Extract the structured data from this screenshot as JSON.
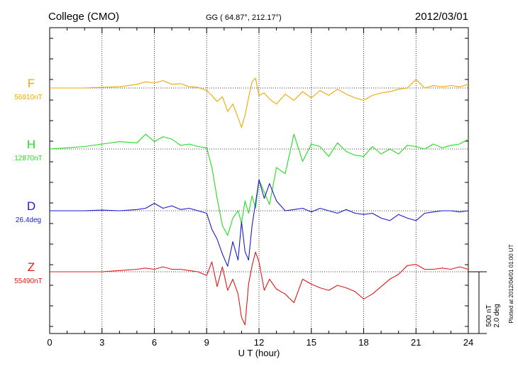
{
  "header": {
    "station": "College (CMO)",
    "coords": "GG ( 64.87°, 212.17°)",
    "date": "2012/03/01"
  },
  "footer": {
    "plotted": "Plotted at 2012/04/01 01:00 UT"
  },
  "scale_bar": {
    "nt_label": "500 nT",
    "deg_label": "2.0 deg"
  },
  "chart_data": {
    "type": "line",
    "title": "",
    "xlabel": "U T (hour)",
    "ylabel": "",
    "xlim": [
      0,
      24
    ],
    "x_ticks": [
      "0",
      "3",
      "6",
      "9",
      "12",
      "15",
      "18",
      "21",
      "24"
    ],
    "grid": true,
    "series": [
      {
        "name": "F",
        "baseline_label": "56910nT",
        "color": "#f0a800",
        "x": [
          0,
          1,
          2,
          3,
          4,
          5,
          5.5,
          6,
          6.5,
          7,
          7.5,
          8,
          8.5,
          9,
          9.3,
          9.6,
          9.9,
          10.2,
          10.5,
          10.8,
          11,
          11.2,
          11.4,
          11.6,
          11.8,
          12,
          12.3,
          12.6,
          13,
          13.5,
          14,
          14.5,
          15,
          15.5,
          16,
          16.5,
          17,
          17.5,
          18,
          18.5,
          19,
          19.5,
          20,
          20.5,
          21,
          21.5,
          22,
          22.5,
          23,
          23.5,
          24
        ],
        "values": [
          0,
          0,
          0,
          5,
          10,
          30,
          50,
          40,
          60,
          30,
          35,
          10,
          5,
          -20,
          -60,
          -110,
          -70,
          -190,
          -130,
          -240,
          -320,
          -220,
          -80,
          50,
          80,
          -60,
          -40,
          -90,
          -130,
          -50,
          -100,
          -30,
          -80,
          -20,
          -60,
          -10,
          -50,
          -80,
          -100,
          -60,
          -40,
          -30,
          -10,
          0,
          70,
          0,
          20,
          10,
          20,
          10,
          30
        ]
      },
      {
        "name": "H",
        "baseline_label": "12870nT",
        "color": "#22dd22",
        "x": [
          0,
          1,
          2,
          3,
          4,
          5,
          5.5,
          6,
          6.5,
          7,
          7.5,
          8,
          8.5,
          9,
          9.3,
          9.6,
          9.9,
          10.2,
          10.5,
          10.8,
          11,
          11.2,
          11.4,
          11.6,
          11.8,
          12,
          12.3,
          12.6,
          13,
          13.5,
          14,
          14.5,
          15,
          15.5,
          16,
          16.5,
          17,
          17.5,
          18,
          18.5,
          19,
          19.5,
          20,
          20.5,
          21,
          21.5,
          22,
          22.5,
          23,
          23.5,
          24
        ],
        "values": [
          0,
          10,
          20,
          40,
          60,
          50,
          120,
          60,
          100,
          80,
          30,
          40,
          20,
          10,
          -150,
          -400,
          -620,
          -700,
          -560,
          -500,
          -600,
          -420,
          -520,
          -380,
          -480,
          -250,
          -350,
          -450,
          -150,
          -200,
          120,
          -100,
          40,
          20,
          -60,
          50,
          -20,
          -50,
          -60,
          20,
          -40,
          0,
          -40,
          30,
          20,
          0,
          40,
          10,
          30,
          40,
          80
        ]
      },
      {
        "name": "D",
        "baseline_label": "26.4deg",
        "color": "#1a1ad0",
        "x": [
          0,
          1,
          2,
          3,
          4,
          5,
          5.5,
          6,
          6.5,
          7,
          7.5,
          8,
          8.5,
          9,
          9.3,
          9.6,
          9.9,
          10.2,
          10.5,
          10.8,
          11,
          11.2,
          11.4,
          11.6,
          11.8,
          12,
          12.3,
          12.6,
          13,
          13.5,
          14,
          14.5,
          15,
          15.5,
          16,
          16.5,
          17,
          17.5,
          18,
          18.5,
          19,
          19.5,
          20,
          20.5,
          21,
          21.5,
          22,
          22.5,
          23,
          23.5,
          24
        ],
        "values": [
          0,
          0,
          0,
          5,
          0,
          10,
          20,
          60,
          20,
          40,
          10,
          20,
          0,
          -20,
          -150,
          -230,
          -350,
          -450,
          -250,
          -400,
          -90,
          -330,
          -400,
          -120,
          60,
          250,
          100,
          220,
          80,
          0,
          10,
          20,
          -10,
          20,
          0,
          -20,
          10,
          -20,
          -30,
          -20,
          -60,
          -80,
          -30,
          -60,
          -80,
          -20,
          -10,
          0,
          0,
          -10,
          0
        ]
      },
      {
        "name": "Z",
        "baseline_label": "55490nT",
        "color": "#e01818",
        "x": [
          0,
          1,
          2,
          3,
          4,
          5,
          5.5,
          6,
          6.5,
          7,
          7.5,
          8,
          8.5,
          9,
          9.3,
          9.6,
          9.9,
          10.2,
          10.5,
          10.8,
          11,
          11.2,
          11.4,
          11.6,
          11.8,
          12,
          12.3,
          12.6,
          13,
          13.5,
          14,
          14.5,
          15,
          15.5,
          16,
          16.5,
          17,
          17.5,
          18,
          18.5,
          19,
          19.5,
          20,
          20.5,
          21,
          21.5,
          22,
          22.5,
          23,
          23.5,
          24
        ],
        "values": [
          0,
          0,
          0,
          0,
          10,
          20,
          30,
          20,
          40,
          20,
          20,
          10,
          0,
          -30,
          80,
          -120,
          40,
          -150,
          -60,
          -180,
          -370,
          -430,
          -100,
          50,
          160,
          80,
          -150,
          -60,
          -140,
          -180,
          -250,
          -60,
          -100,
          -130,
          -150,
          -110,
          -130,
          -160,
          -220,
          -180,
          -120,
          -60,
          -20,
          50,
          60,
          20,
          20,
          30,
          20,
          40,
          20
        ]
      }
    ]
  }
}
